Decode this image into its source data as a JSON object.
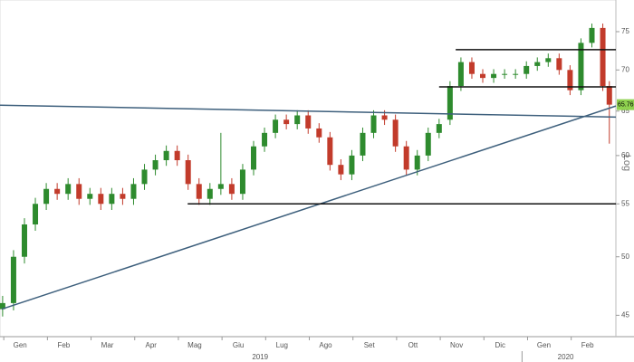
{
  "chart_data": {
    "type": "candlestick",
    "log_scale": true,
    "scale_label": "Log",
    "last_price_label": "65.76",
    "up_color": "#2e8b2e",
    "down_color": "#c23b2b",
    "xlim": [
      -0.46,
      13.65
    ],
    "ylim": [
      43.3,
      79.4
    ],
    "yticks": [
      45,
      50,
      55,
      60,
      65,
      70,
      75
    ],
    "xticks": [
      {
        "value": 0,
        "label": "Gen"
      },
      {
        "value": 1,
        "label": "Feb"
      },
      {
        "value": 2,
        "label": "Mar"
      },
      {
        "value": 3,
        "label": "Apr"
      },
      {
        "value": 4,
        "label": "Mag"
      },
      {
        "value": 5,
        "label": "Giu"
      },
      {
        "value": 6,
        "label": "Lug"
      },
      {
        "value": 7,
        "label": "Ago"
      },
      {
        "value": 8,
        "label": "Set"
      },
      {
        "value": 9,
        "label": "Ott"
      },
      {
        "value": 10,
        "label": "Nov"
      },
      {
        "value": 11,
        "label": "Dic"
      },
      {
        "value": 12,
        "label": "Gen"
      },
      {
        "value": 13,
        "label": "Feb"
      }
    ],
    "years": [
      {
        "value": 5.5,
        "label": "2019"
      },
      {
        "value": 12.5,
        "label": "2020"
      }
    ],
    "year_breaks": [
      11.5
    ],
    "x": [
      -0.4,
      -0.15,
      0.1,
      0.35,
      0.6,
      0.85,
      1.1,
      1.35,
      1.6,
      1.85,
      2.1,
      2.35,
      2.6,
      2.85,
      3.1,
      3.35,
      3.6,
      3.85,
      4.1,
      4.35,
      4.6,
      4.85,
      5.1,
      5.35,
      5.6,
      5.85,
      6.1,
      6.35,
      6.6,
      6.85,
      7.1,
      7.35,
      7.6,
      7.85,
      8.1,
      8.35,
      8.6,
      8.85,
      9.1,
      9.35,
      9.6,
      9.85,
      10.1,
      10.35,
      10.6,
      10.85,
      11.1,
      11.35,
      11.6,
      11.85,
      12.1,
      12.35,
      12.6,
      12.85,
      13.1,
      13.35,
      13.5
    ],
    "open": [
      45.5,
      46,
      50,
      53,
      55,
      56.5,
      56,
      57,
      55.5,
      56,
      55,
      56,
      55.5,
      57,
      58.5,
      59.5,
      60.5,
      59.5,
      57,
      55.5,
      56.5,
      57,
      56,
      58.5,
      61,
      62.5,
      64,
      63.5,
      64.5,
      63,
      62,
      59,
      58,
      60,
      62.5,
      64.5,
      64,
      61,
      58.5,
      60,
      62.5,
      64,
      68,
      71,
      69.5,
      69,
      69.5,
      69.5,
      69.5,
      70.5,
      71,
      71.5,
      70,
      67.5,
      73.5,
      75.5,
      68
    ],
    "high": [
      46.6,
      50.6,
      53.6,
      55.6,
      57.1,
      57.1,
      57.6,
      57.6,
      56.6,
      56.6,
      56.6,
      56.6,
      57.6,
      59.1,
      60.1,
      61.1,
      61.1,
      60.1,
      57.6,
      57.1,
      62.5,
      57.6,
      59.1,
      61.6,
      63.1,
      64.6,
      64.6,
      65.1,
      65.1,
      63.6,
      62.6,
      59.6,
      60.6,
      63.1,
      65.1,
      65.1,
      64.6,
      61.6,
      60.6,
      63.1,
      64.1,
      68.6,
      71.6,
      71.6,
      70.1,
      70.1,
      70.1,
      70.1,
      71.1,
      71.6,
      72.1,
      72.1,
      70.6,
      74.1,
      76.1,
      76.1,
      68.6
    ],
    "low": [
      44.9,
      45.4,
      49.4,
      52.4,
      54.4,
      55.4,
      55.4,
      54.9,
      54.9,
      54.4,
      54.4,
      54.9,
      54.9,
      56.4,
      57.9,
      58.9,
      58.9,
      56.4,
      54.9,
      54.9,
      55.9,
      55.4,
      55.4,
      57.9,
      60.4,
      61.9,
      62.9,
      62.9,
      62.4,
      61.4,
      58.4,
      57.4,
      57.4,
      59.4,
      61.9,
      63.4,
      60.4,
      57.9,
      57.9,
      59.4,
      61.9,
      63.4,
      67.4,
      68.9,
      68.4,
      68.4,
      68.9,
      68.9,
      68.9,
      69.9,
      70.4,
      69.4,
      66.9,
      66.9,
      72.9,
      67.4,
      61.3
    ],
    "close": [
      46,
      50,
      53,
      55,
      56.5,
      56,
      57,
      55.5,
      56,
      55,
      56,
      55.5,
      57,
      58.5,
      59.5,
      60.5,
      59.5,
      57,
      55.5,
      56.5,
      57,
      56,
      58.5,
      61,
      62.5,
      64,
      63.5,
      64.5,
      63,
      62,
      59,
      58,
      60,
      62.5,
      64.5,
      64,
      61,
      58.5,
      60,
      62.5,
      63.5,
      68,
      71,
      69.5,
      69,
      69.5,
      69.5,
      69.5,
      70.5,
      71,
      71.5,
      70,
      67.5,
      73.5,
      75.5,
      68,
      65.76
    ],
    "lines": [
      {
        "color": "#3d5f7c",
        "x": [
          -0.46,
          13.65
        ],
        "y": [
          65.7,
          64.3
        ]
      },
      {
        "color": "#3d5f7c",
        "x": [
          -0.42,
          13.65
        ],
        "y": [
          45.5,
          65.6
        ]
      },
      {
        "color": "#111111",
        "x": [
          3.84,
          13.65
        ],
        "y": [
          55,
          55
        ]
      },
      {
        "color": "#111111",
        "x": [
          9.98,
          13.65
        ],
        "y": [
          72.6,
          72.6
        ]
      },
      {
        "color": "#111111",
        "x": [
          9.6,
          13.65
        ],
        "y": [
          67.9,
          67.9
        ]
      }
    ]
  }
}
